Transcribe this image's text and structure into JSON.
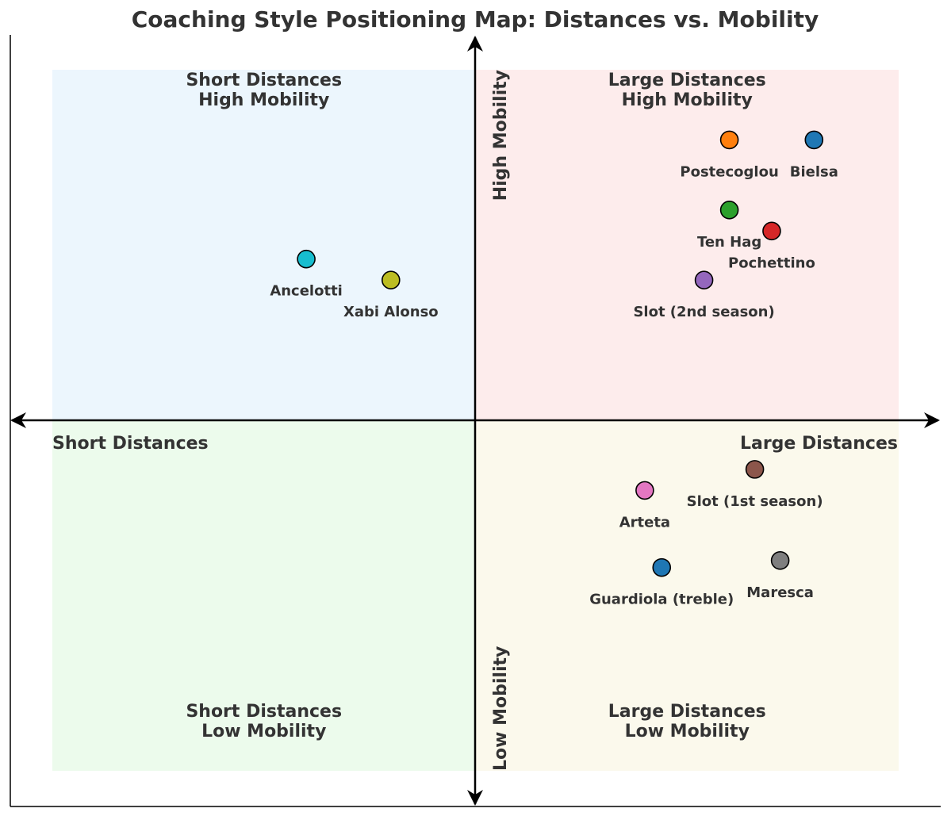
{
  "chart_data": {
    "type": "scatter",
    "title": "Coaching Style Positioning Map: Distances vs. Mobility",
    "xlabel": "",
    "ylabel": "",
    "xlim": [
      -1,
      1
    ],
    "ylim": [
      -1,
      1
    ],
    "grid": false,
    "axis_labels": {
      "x_left": "Short Distances",
      "x_right": "Large Distances",
      "y_top": "High Mobility",
      "y_bottom": "Low Mobility"
    },
    "quadrants": [
      {
        "key": "tl",
        "line1": "Short Distances",
        "line2": "High Mobility",
        "color": "#ddeefc"
      },
      {
        "key": "tr",
        "line1": "Large Distances",
        "line2": "High Mobility",
        "color": "#fbdcdc"
      },
      {
        "key": "bl",
        "line1": "Short Distances",
        "line2": "Low Mobility",
        "color": "#dcf7dc"
      },
      {
        "key": "br",
        "line1": "Large Distances",
        "line2": "Low Mobility",
        "color": "#f8f4dc"
      }
    ],
    "points": [
      {
        "name": "Bielsa",
        "x": 0.8,
        "y": 0.8,
        "color": "#1f77b4"
      },
      {
        "name": "Postecoglou",
        "x": 0.6,
        "y": 0.8,
        "color": "#ff7f0e"
      },
      {
        "name": "Ten Hag",
        "x": 0.6,
        "y": 0.6,
        "color": "#2ca02c"
      },
      {
        "name": "Pochettino",
        "x": 0.7,
        "y": 0.54,
        "color": "#d62728"
      },
      {
        "name": "Slot (2nd season)",
        "x": 0.54,
        "y": 0.4,
        "color": "#9467bd"
      },
      {
        "name": "Slot (1st season)",
        "x": 0.66,
        "y": -0.14,
        "color": "#8c564b"
      },
      {
        "name": "Arteta",
        "x": 0.4,
        "y": -0.2,
        "color": "#e377c2"
      },
      {
        "name": "Maresca",
        "x": 0.72,
        "y": -0.4,
        "color": "#7f7f7f"
      },
      {
        "name": "Xabi Alonso",
        "x": -0.2,
        "y": 0.4,
        "color": "#bcbd22"
      },
      {
        "name": "Ancelotti",
        "x": -0.4,
        "y": 0.46,
        "color": "#17becf"
      },
      {
        "name": "Guardiola (treble)",
        "x": 0.44,
        "y": -0.42,
        "color": "#1f77b4"
      }
    ]
  }
}
